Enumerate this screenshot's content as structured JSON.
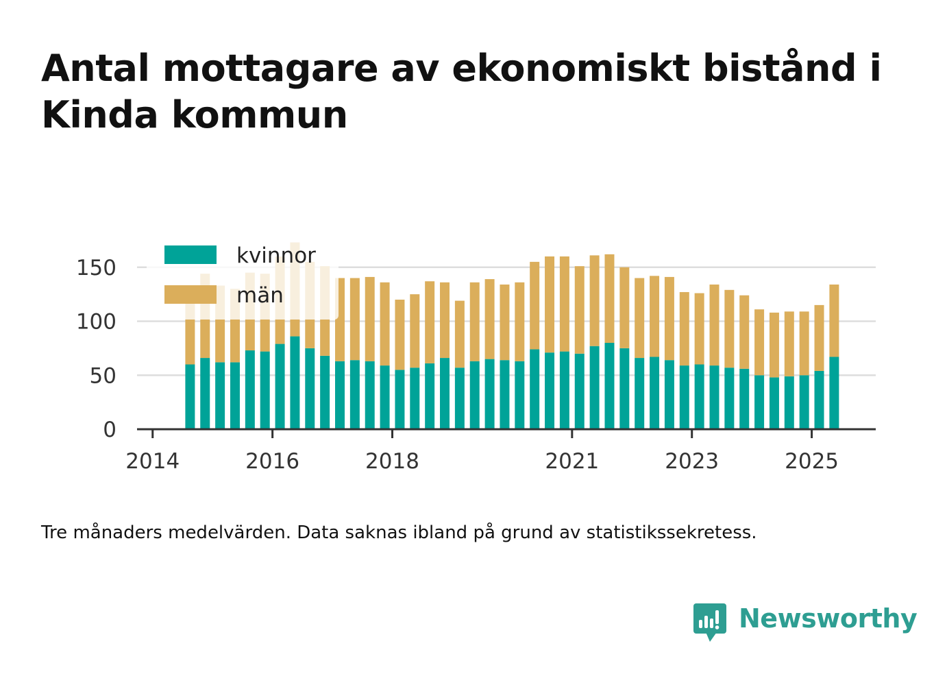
{
  "title": "Antal mottagare av ekonomiskt bistånd i Kinda kommun",
  "note": "Tre månaders medelvärden. Data saknas ibland på grund av statistikssekretess.",
  "brand": {
    "name": "Newsworthy",
    "icon": "bar-chart-speech-bubble-icon",
    "color": "#2e9e92"
  },
  "chart_data": {
    "type": "bar",
    "stacked": true,
    "categories": [
      "2014 Q3",
      "2014 Q4",
      "2015 Q1",
      "2015 Q2",
      "2015 Q3",
      "2015 Q4",
      "2016 Q1",
      "2016 Q2",
      "2016 Q3",
      "2016 Q4",
      "2017 Q1",
      "2017 Q2",
      "2017 Q3",
      "2017 Q4",
      "2018 Q1",
      "2018 Q2",
      "2018 Q3",
      "2018 Q4",
      "2019 Q1",
      "2019 Q2",
      "2019 Q3",
      "2019 Q4",
      "2020 Q1",
      "2020 Q2",
      "2020 Q3",
      "2020 Q4",
      "2021 Q1",
      "2021 Q2",
      "2021 Q3",
      "2021 Q4",
      "2022 Q1",
      "2022 Q2",
      "2022 Q3",
      "2022 Q4",
      "2023 Q1",
      "2023 Q2",
      "2023 Q3",
      "2023 Q4",
      "2024 Q1",
      "2024 Q2",
      "2024 Q3",
      "2024 Q4",
      "2025 Q1",
      "2025 Q2",
      "2025 Q3"
    ],
    "series": [
      {
        "name": "kvinnor",
        "color": "#00a398",
        "values": [
          60,
          66,
          62,
          62,
          73,
          72,
          79,
          86,
          75,
          68,
          63,
          64,
          63,
          59,
          55,
          57,
          61,
          66,
          57,
          63,
          65,
          64,
          63,
          74,
          71,
          72,
          70,
          77,
          80,
          75,
          66,
          67,
          64,
          59,
          60,
          59,
          57,
          56,
          50,
          48,
          49,
          50,
          54,
          67,
          null
        ]
      },
      {
        "name": "män",
        "color": "#dbae5b",
        "values": [
          62,
          78,
          71,
          68,
          72,
          72,
          81,
          87,
          80,
          83,
          77,
          76,
          78,
          77,
          65,
          68,
          76,
          70,
          62,
          73,
          74,
          70,
          73,
          81,
          89,
          88,
          81,
          84,
          82,
          75,
          74,
          75,
          77,
          68,
          66,
          75,
          72,
          68,
          61,
          60,
          60,
          59,
          61,
          67,
          null
        ]
      }
    ],
    "xticks": [
      "2014",
      "2016",
      "2018",
      "2021",
      "2023",
      "2025"
    ],
    "yticks": [
      0,
      50,
      100,
      150
    ],
    "ylim": [
      0,
      175
    ],
    "grid": true,
    "legend": "top-left"
  }
}
